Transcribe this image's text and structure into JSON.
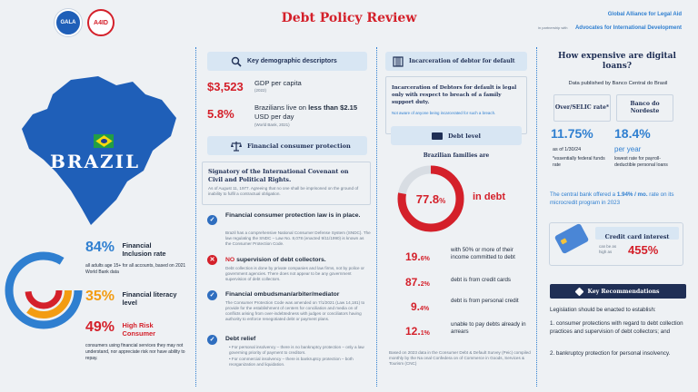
{
  "header": {
    "title": "Debt Policy Review",
    "logo1": "GALA",
    "logo2": "A4ID",
    "partner_line1": "Global Alliance for Legal Aid",
    "partner_small": "in partnership with",
    "partner_line2": "Advocates for International Development"
  },
  "country": {
    "name": "BRAZIL",
    "map_color": "#1f5fb8",
    "flag_green": "#229e45",
    "flag_yellow": "#f8d90f",
    "flag_blue": "#1e3f91"
  },
  "left_stats": [
    {
      "value": "84%",
      "label": "Financial Inclusion rate",
      "desc": "all adults age 15+ for all accounts, based on 2021 World Bank data",
      "color": "#2f7fd0"
    },
    {
      "value": "35%",
      "label": "Financial literacy level",
      "desc": "",
      "color": "#f39c12"
    },
    {
      "value": "49%",
      "label": "High Risk Consumer",
      "desc": "consumers using financial services they may not understand, nor appreciate risk nor have ability to repay.",
      "color": "#d4202a"
    }
  ],
  "demographic": {
    "title": "Key demographic descriptors",
    "gdp_value": "$3,523",
    "gdp_label": "GDP per capita",
    "gdp_year": "(2022)",
    "pov_value": "5.8%",
    "pov_label_pre": "Brazilians live on ",
    "pov_label_bold": "less than $2.15",
    "pov_label_post": "USD per day",
    "pov_source": "(World Bank, 2021)"
  },
  "consumer": {
    "title": "Financial consumer protection",
    "covenant_title": "Signatory of the International Covenant on Civil and Political Rights.",
    "covenant_text": "As of August 11, 1977. Agreeing that no one shall be imprisoned on the ground of inability to fulfil a contractual obligation.",
    "items": [
      {
        "title": "Financial consumer protection law is in place.",
        "text": "Brazil has a comprehensive National Consumer Defense System (SNDC). The law regulating the SNDC – Law No. 8,078 (enacted 9/11/1990) is known as the Consumer Protection Code."
      },
      {
        "title_red": "NO",
        "title": " supervision of debt collectors.",
        "text": "Debt collection is done by private companies and law firms, not by police or government agencies. There does not appear to be any government supervision of debt collectors."
      },
      {
        "title": "Financial ombudsman/arbiter/mediator",
        "text": "The Consumer Protection Code was amended on 7/1/2021 (Law 14,181) to provide for the establishment of centers for conciliation and media   on of conflicts arising from over-indebtedness with judges or conciliators having authority to enforce renegotiated debt or payment plans."
      },
      {
        "title": "Debt relief",
        "bullets": [
          "For personal insolvency – there is no bankruptcy protection – only a law governing priority of payment to creditors.",
          "For commercial insolvency – there is bankruptcy protection – both reorganization and liquidation."
        ]
      }
    ]
  },
  "incarceration": {
    "title": "Incarceration of debtor for default",
    "text": "Incarceration of Debtors for default is legal only with respect to breach of a family support duty.",
    "note": "Not aware of anyone being incarcerated for such a breach."
  },
  "debt": {
    "title": "Debt level",
    "subtitle": "Brazilian families are",
    "donut_value": "77.8",
    "donut_pct": "%",
    "donut_label": "in debt",
    "donut_fraction": 0.778,
    "rows": [
      {
        "value": "19.",
        "dec": "6%",
        "text": "with 50% or more of their income committed to debt"
      },
      {
        "value": "87.",
        "dec": "2%",
        "text": "debt is from credit cards"
      },
      {
        "value": "9.",
        "dec": "4%",
        "text": "debt is from personal credit"
      },
      {
        "value": "12.",
        "dec": "1%",
        "text": "unable to pay debts already in arrears"
      }
    ],
    "source": "Based on 2023 data in the Consumer Debt & Default Survey (Peic) compiled monthly by the Na   onal Confedera   on of Commerce in Goods, Services & Tourism (CNC)"
  },
  "loans": {
    "title": "How expensive are digital loans?",
    "source": "Data published by Banco Central do Brasil",
    "col1_head": "Over/SELIC rate*",
    "col1_value": "11.75%",
    "col1_note1": "as of 1/30/24",
    "col1_note2": "*essentially federal funds rate",
    "col2_head": "Banco do Nordeste",
    "col2_value": "18.4%",
    "col2_per": "per year",
    "col2_note": "lowest rate for payroll-deductible personal loans",
    "central_pre": "The central bank offered a ",
    "central_bold": "1.94% / mo.",
    "central_post": " rate on its microcredit program in 2023",
    "cc_title": "Credit card interest",
    "cc_small": "can be as high as",
    "cc_value": "455%"
  },
  "recs": {
    "title": "Key Recommendations",
    "intro": "Legislation should be enacted to establish:",
    "items": [
      "1. consumer protections with regard to debt collection practices and supervision of debt collectors; and",
      "2. bankruptcy protection for personal insolvency."
    ]
  }
}
